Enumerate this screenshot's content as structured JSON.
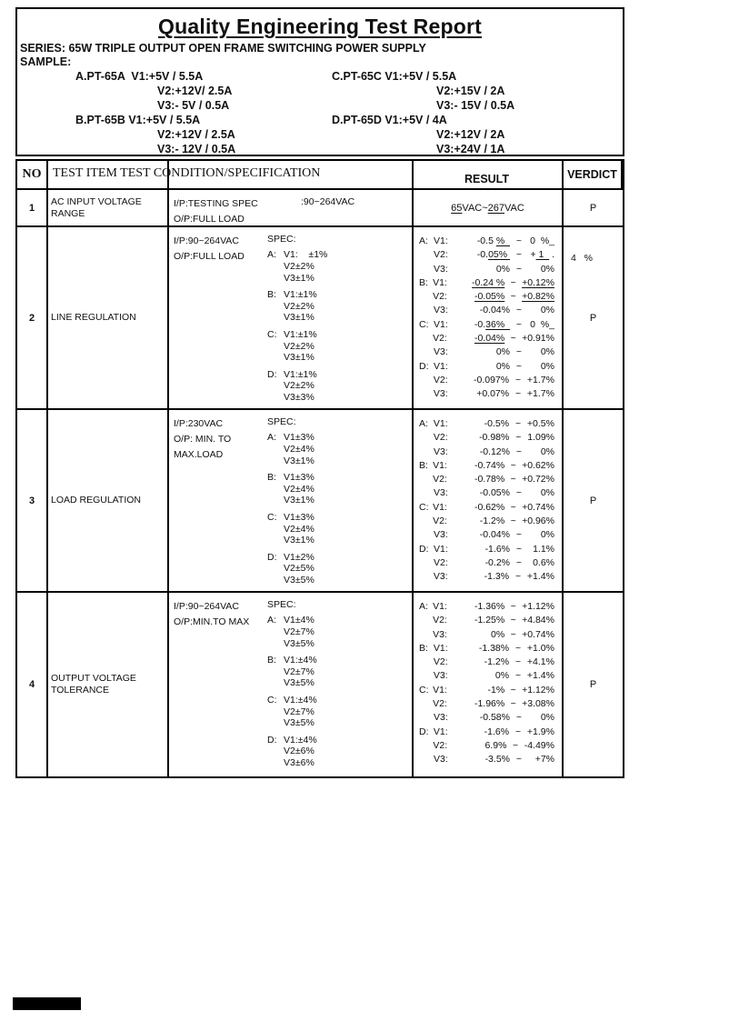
{
  "page": {
    "title": "Quality Engineering Test Report",
    "series": "SERIES: 65W TRIPLE OUTPUT OPEN FRAME SWITCHING POWER SUPPLY",
    "sample_label": "SAMPLE:"
  },
  "samples": {
    "left": [
      {
        "line1": "A.PT-65A  V1:+5V / 5.5A",
        "subs": [
          "V2:+12V/ 2.5A",
          "V3:- 5V / 0.5A"
        ]
      },
      {
        "line1": "B.PT-65B V1:+5V / 5.5A",
        "subs": [
          "V2:+12V / 2.5A",
          "V3:- 12V / 0.5A"
        ]
      }
    ],
    "right": [
      {
        "line1": "C.PT-65C V1:+5V / 5.5A",
        "subs": [
          "V2:+15V / 2A",
          "V3:- 15V / 0.5A"
        ]
      },
      {
        "line1": "D.PT-65D V1:+5V / 4A",
        "subs": [
          "V2:+12V / 2A",
          "V3:+24V / 1A"
        ]
      }
    ]
  },
  "table": {
    "header": {
      "no": "NO",
      "item_cond": "TEST ITEM TEST CONDITION/SPECIFICATION",
      "result": "RESULT",
      "verdict": "VERDICT"
    },
    "rows": [
      {
        "no": "1",
        "item": "AC INPUT VOLTAGE RANGE",
        "cond": {
          "left": [
            "I/P:TESTING SPEC",
            "O/P:FULL LOAD"
          ],
          "right_top": ":90~264VAC"
        },
        "result_center": [
          {
            "t": "65",
            "u": 1
          },
          {
            "t": "VAC~"
          },
          {
            "t": "267",
            "u": 1
          },
          {
            "t": "VAC"
          }
        ],
        "verdict": "P"
      },
      {
        "no": "2",
        "item": "LINE REGULATION",
        "cond": {
          "left": [
            "I/P:90~264VAC",
            "O/P:FULL LOAD"
          ],
          "spec": "SPEC:",
          "groups": [
            {
              "g": "A:",
              "lines": [
                "V1:    ±1%",
                "V2±2%",
                "V3±1%"
              ]
            },
            {
              "g": "B:",
              "lines": [
                "V1:±1%",
                "V2±2%",
                "V3±1%"
              ]
            },
            {
              "g": "C:",
              "lines": [
                "V1:±1%",
                "V2±2%",
                "V3±1%"
              ]
            },
            {
              "g": "D:",
              "lines": [
                "V1:±1%",
                "V2±2%",
                "V3±3%"
              ]
            }
          ]
        },
        "result_lines": [
          {
            "a": "A:",
            "b": "V1:",
            "lo": [
              {
                "t": "-0.5 "
              },
              {
                "t": "%  ",
                "u": 1
              }
            ],
            "hi": "0  %_"
          },
          {
            "a": "",
            "b": "V2:",
            "lo": [
              {
                "t": "-0."
              },
              {
                "t": "05% ",
                "u": 1
              }
            ],
            "hi": [
              {
                "t": "+"
              },
              {
                "t": " 1  ",
                "u": 1
              },
              {
                "t": " ."
              }
            ]
          },
          {
            "a": "",
            "b": "V3:",
            "lo": "0%",
            "hi": "0%"
          },
          {
            "a": "B:",
            "b": "V1:",
            "lo": [
              {
                "t": "-0.24 %",
                "u": 1
              }
            ],
            "hi": [
              {
                "t": "+0.12%",
                "u": 1
              }
            ]
          },
          {
            "a": "",
            "b": "V2:",
            "lo": [
              {
                "t": "-0.05%",
                "u": 1
              }
            ],
            "hi": [
              {
                "t": "+0.82%",
                "u": 1
              }
            ]
          },
          {
            "a": "",
            "b": "V3:",
            "lo": "-0.04%",
            "hi": "0%"
          },
          {
            "a": "C:",
            "b": "V1:",
            "lo": [
              {
                "t": "-0."
              },
              {
                "t": "36%  ",
                "u": 1
              }
            ],
            "hi": "0  %_"
          },
          {
            "a": "",
            "b": "V2:",
            "lo": [
              {
                "t": "-0.04%",
                "u": 1
              }
            ],
            "hi": "+0.91%"
          },
          {
            "a": "",
            "b": "V3:",
            "lo": "0%",
            "hi": "0%"
          },
          {
            "a": "D:",
            "b": "V1:",
            "lo": "0%",
            "hi": "0%"
          },
          {
            "a": "",
            "b": "V2:",
            "lo": "-0.097%",
            "hi": "+1.7%"
          },
          {
            "a": "",
            "b": "V3:",
            "lo": "+0.07%",
            "hi": "+1.7%"
          }
        ],
        "verdict": "P",
        "verdict_spill": "4   %"
      },
      {
        "no": "3",
        "item": "LOAD REGULATION",
        "cond": {
          "left": [
            "I/P:230VAC",
            "O/P: MIN. TO",
            "MAX.LOAD"
          ],
          "spec": "SPEC:",
          "groups": [
            {
              "g": "A:",
              "lines": [
                "V1±3%",
                "V2±4%",
                "V3±1%"
              ]
            },
            {
              "g": "B:",
              "lines": [
                "V1±3%",
                "V2±4%",
                "V3±1%"
              ]
            },
            {
              "g": "C:",
              "lines": [
                "V1±3%",
                "V2±4%",
                "V3±1%"
              ]
            },
            {
              "g": "D:",
              "lines": [
                "V1±2%",
                "V2±5%",
                "V3±5%"
              ]
            }
          ]
        },
        "result_lines": [
          {
            "a": "A:",
            "b": "V1:",
            "lo": "-0.5%",
            "hi": "+0.5%"
          },
          {
            "a": "",
            "b": "V2:",
            "lo": "-0.98%",
            "hi": "1.09%"
          },
          {
            "a": "",
            "b": "V3:",
            "lo": "-0.12%",
            "hi": "0%"
          },
          {
            "a": "B:",
            "b": "V1:",
            "lo": "-0.74%",
            "hi": "+0.62%"
          },
          {
            "a": "",
            "b": "V2:",
            "lo": "-0.78%",
            "hi": "+0.72%"
          },
          {
            "a": "",
            "b": "V3:",
            "lo": "-0.05%",
            "hi": "0%"
          },
          {
            "a": "C:",
            "b": "V1:",
            "lo": "-0.62%",
            "hi": "+0.74%"
          },
          {
            "a": "",
            "b": "V2:",
            "lo": "-1.2%",
            "hi": "+0.96%"
          },
          {
            "a": "",
            "b": "V3:",
            "lo": "-0.04%",
            "hi": "0%"
          },
          {
            "a": "D:",
            "b": "V1:",
            "lo": "-1.6%",
            "hi": "1.1%"
          },
          {
            "a": "",
            "b": "V2:",
            "lo": "-0.2%",
            "hi": "0.6%"
          },
          {
            "a": "",
            "b": "V3:",
            "lo": "-1.3%",
            "hi": "+1.4%"
          }
        ],
        "verdict": "P"
      },
      {
        "no": "4",
        "item": "OUTPUT VOLTAGE TOLERANCE",
        "cond": {
          "left": [
            "I/P:90~264VAC",
            "O/P:MIN.TO MAX"
          ],
          "spec": "SPEC:",
          "groups": [
            {
              "g": "A:",
              "lines": [
                "V1±4%",
                "V2±7%",
                "V3±5%"
              ]
            },
            {
              "g": "B:",
              "lines": [
                "V1:±4%",
                "V2±7%",
                "V3±5%"
              ]
            },
            {
              "g": "C:",
              "lines": [
                "V1:±4%",
                "V2±7%",
                "V3±5%"
              ]
            },
            {
              "g": "D:",
              "lines": [
                "V1:±4%",
                "V2±6%",
                "V3±6%"
              ]
            }
          ]
        },
        "result_lines": [
          {
            "a": "A:",
            "b": "V1:",
            "lo": "-1.36%",
            "hi": "+1.12%"
          },
          {
            "a": "",
            "b": "V2:",
            "lo": "-1.25%",
            "hi": "+4.84%"
          },
          {
            "a": "",
            "b": "V3:",
            "lo": "0%",
            "hi": "+0.74%"
          },
          {
            "a": "B:",
            "b": "V1:",
            "lo": "-1.38%",
            "hi": "+1.0%"
          },
          {
            "a": "",
            "b": "V2:",
            "lo": "-1.2%",
            "hi": "+4.1%"
          },
          {
            "a": "",
            "b": "V3:",
            "lo": "0%",
            "hi": "+1.4%"
          },
          {
            "a": "C:",
            "b": "V1:",
            "lo": "-1%",
            "hi": "+1.12%"
          },
          {
            "a": "",
            "b": "V2:",
            "lo": "-1.96%",
            "hi": "+3.08%"
          },
          {
            "a": "",
            "b": "V3:",
            "lo": "-0.58%",
            "hi": "0%"
          },
          {
            "a": "D:",
            "b": "V1:",
            "lo": "-1.6%",
            "hi": "+1.9%"
          },
          {
            "a": "",
            "b": "V2:",
            "lo": "6.9%",
            "hi": "-4.49%"
          },
          {
            "a": "",
            "b": "V3:",
            "lo": "-3.5%",
            "hi": "+7%"
          }
        ],
        "verdict": "P"
      }
    ]
  }
}
